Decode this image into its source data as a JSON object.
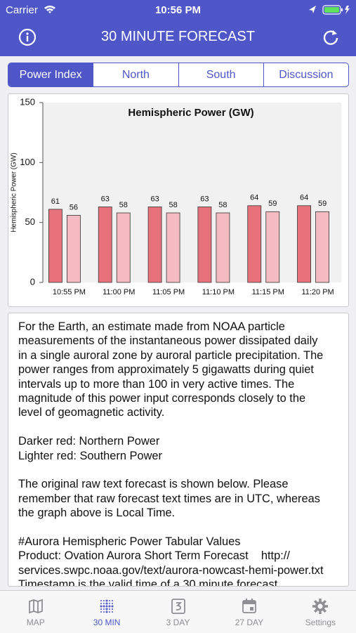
{
  "status_bar": {
    "carrier": "Carrier",
    "time": "10:56 PM"
  },
  "header": {
    "title": "30 MINUTE FORECAST"
  },
  "segments": [
    "Power Index",
    "North",
    "South",
    "Discussion"
  ],
  "chart_data": {
    "type": "bar",
    "title": "Hemispheric Power (GW)",
    "y_label": "Hemispheric Power (GW)",
    "categories": [
      "10:55 PM",
      "11:00 PM",
      "11:05 PM",
      "11:10 PM",
      "11:15 PM",
      "11:20 PM"
    ],
    "series": [
      {
        "color": "#e8727c",
        "values": [
          61,
          63,
          63,
          63,
          64,
          64
        ]
      },
      {
        "color": "#f4bcc2",
        "values": [
          56,
          58,
          58,
          58,
          59,
          59
        ]
      }
    ],
    "ylim": [
      0,
      150
    ],
    "yticks": [
      0,
      50,
      100,
      150
    ],
    "grid": false
  },
  "description": [
    [
      "For the Earth, an estimate made from NOAA particle",
      "measurements of the instantaneous power dissipated daily",
      "in a single auroral zone by auroral particle precipitation. The",
      "power ranges from approximately 5 gigawatts during quiet",
      "intervals up to more than 100 in very active times. The",
      "magnitude of this power input corresponds closely to the",
      "level of geomagnetic activity."
    ],
    [
      "Darker red: Northern Power",
      "Lighter red: Southern Power"
    ],
    [
      "The original raw text forecast is shown below. Please",
      "remember that raw forecast text times are in UTC, whereas",
      "the graph above is Local Time."
    ],
    [
      "#Aurora Hemispheric Power Tabular Values",
      "Product: Ovation Aurora Short Term Forecast    http://",
      "services.swpc.noaa.gov/text/aurora-nowcast-hemi-power.txt",
      "Timestamp is the valid time of a 30 minute forecast"
    ]
  ],
  "tab_bar": [
    "MAP",
    "30 MIN",
    "3 DAY",
    "27 DAY",
    "Settings"
  ]
}
